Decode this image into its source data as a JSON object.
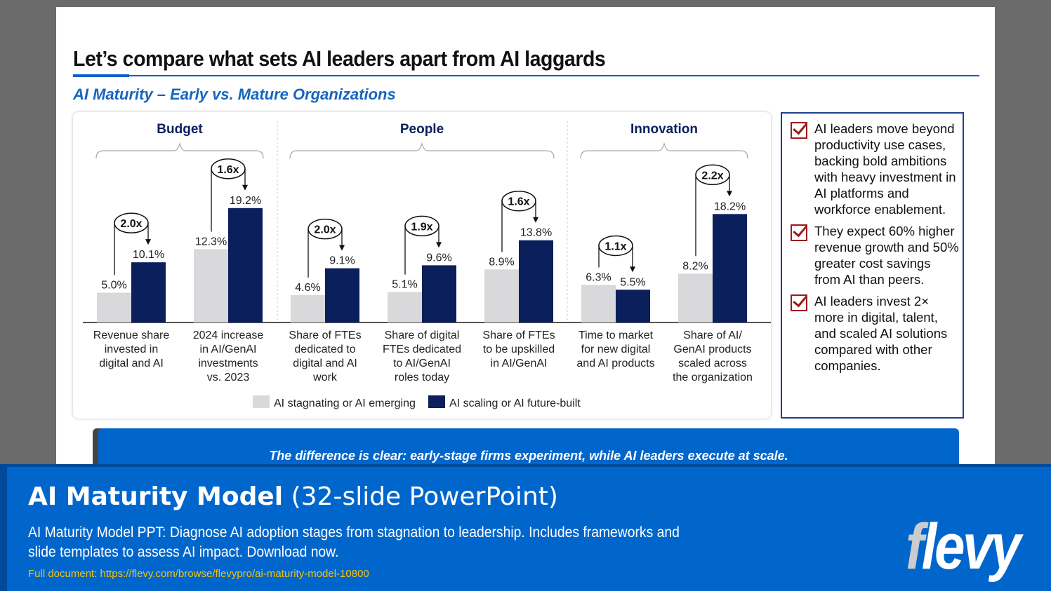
{
  "slide": {
    "title": "Let’s compare what sets AI leaders apart from AI laggards",
    "subtitle": "AI Maturity – Early vs. Mature Organizations",
    "callout": "The difference is clear: early-stage firms experiment, while AI leaders execute at scale."
  },
  "chart_data": {
    "type": "bar",
    "groups": [
      {
        "name": "Budget",
        "categories": [
          0,
          1
        ]
      },
      {
        "name": "People",
        "categories": [
          2,
          3,
          4
        ]
      },
      {
        "name": "Innovation",
        "categories": [
          5,
          6
        ]
      }
    ],
    "categories": [
      [
        "Revenue share",
        "invested in",
        "digital and AI"
      ],
      [
        "2024 increase",
        "in AI/GenAI",
        "investments",
        "vs. 2023"
      ],
      [
        "Share of FTEs",
        "dedicated to",
        "digital and AI",
        "work"
      ],
      [
        "Share of digital",
        "FTEs dedicated",
        "to AI/GenAI",
        "roles today"
      ],
      [
        "Share of FTEs",
        "to be upskilled",
        "in AI/GenAI"
      ],
      [
        "Time to market",
        "for new digital",
        "and AI products"
      ],
      [
        "Share of AI/",
        "GenAI products",
        "scaled across",
        "the organization"
      ]
    ],
    "series": [
      {
        "name": "AI stagnating or AI emerging",
        "color": "#d9d9db",
        "values": [
          5.0,
          12.3,
          4.6,
          5.1,
          8.9,
          6.3,
          8.2
        ],
        "labels": [
          "5.0%",
          "12.3%",
          "4.6%",
          "5.1%",
          "8.9%",
          "6.3%",
          "8.2%"
        ]
      },
      {
        "name": "AI scaling or AI future-built",
        "color": "#0a1f5c",
        "values": [
          10.1,
          19.2,
          9.1,
          9.6,
          13.8,
          5.5,
          18.2
        ],
        "labels": [
          "10.1%",
          "19.2%",
          "9.1%",
          "9.6%",
          "13.8%",
          "5.5%",
          "18.2%"
        ]
      }
    ],
    "multipliers": [
      "2.0x",
      "1.6x",
      "2.0x",
      "1.9x",
      "1.6x",
      "1.1x",
      "2.2x"
    ],
    "legend": "bottom",
    "grid": false
  },
  "insights": [
    {
      "icon": "checkbox-checked-icon",
      "text": "AI leaders move beyond productivity use cases, backing bold ambitions with heavy investment in AI platforms and workforce enablement."
    },
    {
      "icon": "checkbox-checked-icon",
      "text": "They expect 60% higher revenue growth and 50% greater cost savings from AI than peers."
    },
    {
      "icon": "checkbox-checked-icon",
      "text": "AI leaders invest 2× more in digital, talent, and scaled AI solutions compared with other companies."
    }
  ],
  "banner": {
    "title_bold": "AI Maturity Model",
    "title_light": "(32-slide PowerPoint)",
    "description": "AI Maturity Model PPT: Diagnose AI adoption stages from stagnation to leadership. Includes frameworks and slide templates to assess AI impact. Download now.",
    "link": "Full document: https://flevy.com/browse/flevypro/ai-maturity-model-10800",
    "logo": "flevy"
  }
}
